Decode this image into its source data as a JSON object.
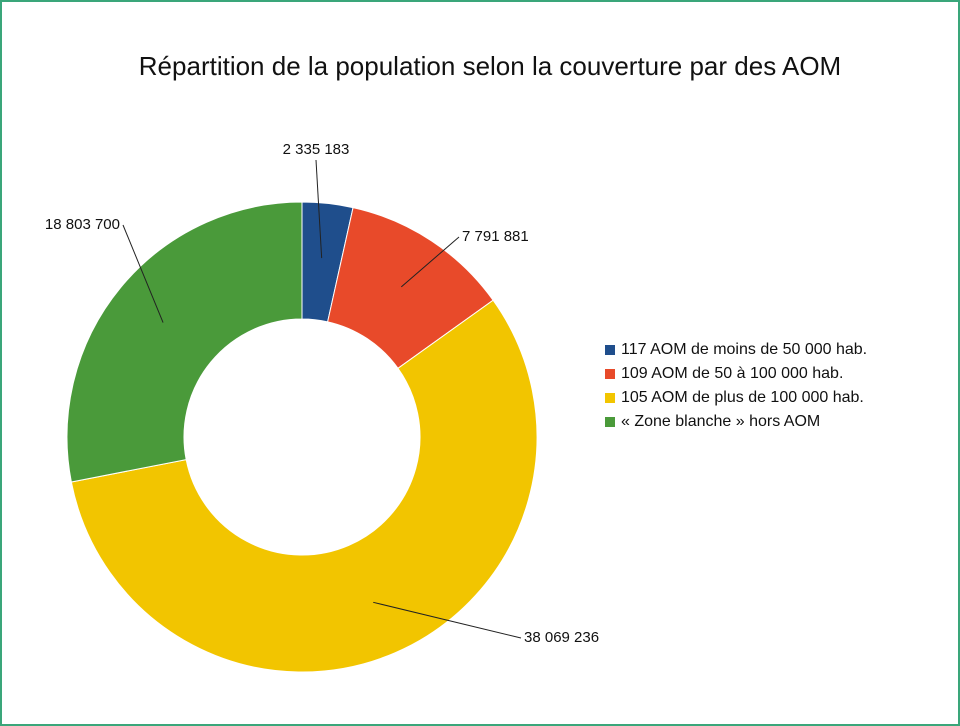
{
  "chart_data": {
    "type": "pie",
    "title": "Répartition de la population selon la couverture par des AOM",
    "categories": [
      "117 AOM de moins de 50 000 hab.",
      "109 AOM de 50 à 100 000 hab.",
      "105 AOM de plus de 100 000 hab.",
      "« Zone blanche » hors AOM"
    ],
    "values": [
      2335183,
      7791881,
      38069236,
      18803700
    ],
    "value_labels": [
      "2 335 183",
      "7 791 881",
      "38 069 236",
      "18 803 700"
    ],
    "colors": [
      "#1f4e8c",
      "#e84a2a",
      "#f2c500",
      "#4a9a3a"
    ],
    "legend": "right"
  }
}
